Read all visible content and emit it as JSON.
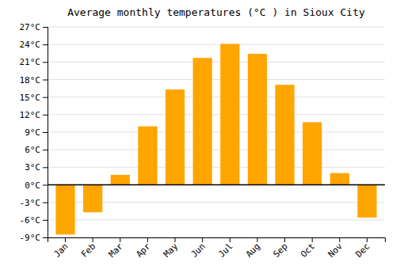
{
  "chart_data": {
    "type": "bar",
    "title": "Average monthly temperatures (°C ) in Sioux City",
    "categories": [
      "Jan",
      "Feb",
      "Mar",
      "Apr",
      "May",
      "Jun",
      "Jul",
      "Aug",
      "Sep",
      "Oct",
      "Nov",
      "Dec"
    ],
    "values": [
      -8.5,
      -4.7,
      1.7,
      10.0,
      16.3,
      21.7,
      24.1,
      22.4,
      17.1,
      10.7,
      2.0,
      -5.6
    ],
    "color": "#FFA500",
    "ylim": [
      -9,
      27
    ],
    "yticks": [
      {
        "value": -9,
        "label": "-9°C"
      },
      {
        "value": -6,
        "label": "-6°C"
      },
      {
        "value": -3,
        "label": "-3°C"
      },
      {
        "value": 0,
        "label": "0°C"
      },
      {
        "value": 3,
        "label": "3°C"
      },
      {
        "value": 6,
        "label": "6°C"
      },
      {
        "value": 9,
        "label": "9°C"
      },
      {
        "value": 12,
        "label": "12°C"
      },
      {
        "value": 15,
        "label": "15°C"
      },
      {
        "value": 18,
        "label": "18°C"
      },
      {
        "value": 21,
        "label": "21°C"
      },
      {
        "value": 24,
        "label": "24°C"
      },
      {
        "value": 27,
        "label": "27°C"
      }
    ],
    "grid": true
  }
}
